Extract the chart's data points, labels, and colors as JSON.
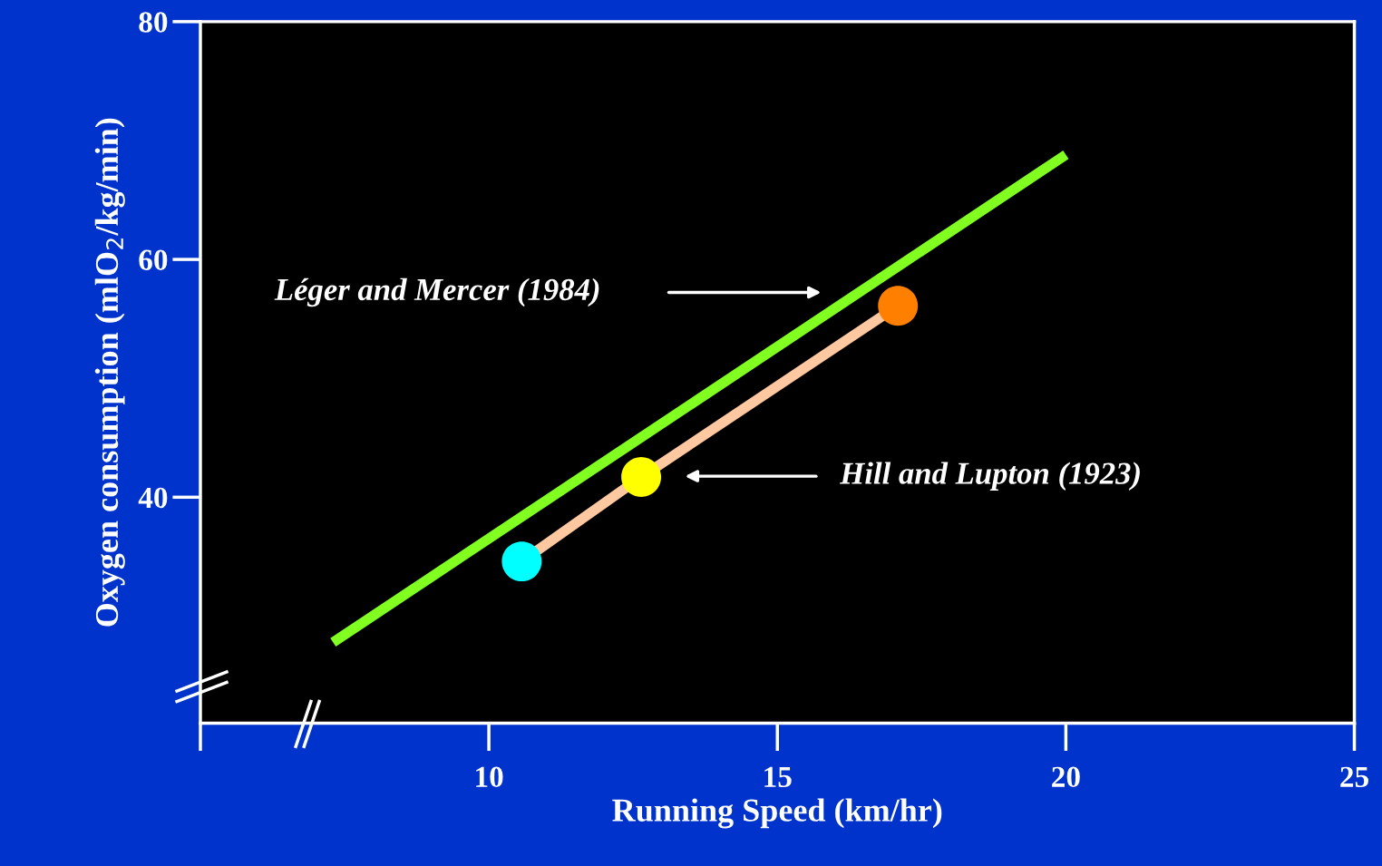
{
  "chart_data": {
    "type": "line",
    "xlabel": "Running Speed (km/hr)",
    "ylabel": "Oxygen consumption (mlO$_{2}$/kg/min)",
    "xlim": [
      5,
      25
    ],
    "xticks": [
      {
        "value": 5,
        "label": null
      },
      10,
      15,
      20,
      25
    ],
    "ylim": [
      21,
      80
    ],
    "yticks": [
      40,
      60,
      80
    ],
    "grid": false,
    "legend": false,
    "series": [
      {
        "color": "#80ff20",
        "x": [
          7.3,
          20.0
        ],
        "values": [
          27.8,
          68.8
        ],
        "marker": "none"
      },
      {
        "color": "#ffc8a0",
        "colors": [
          "#00ffff",
          "#ffff00",
          "#ff8000"
        ],
        "x": [
          10.57,
          12.64,
          17.09
        ],
        "values": [
          34.6,
          41.7,
          56.1
        ],
        "marker": "circle"
      }
    ],
    "annotations": [
      "Léger and Mercer (1984)",
      "Hill and Lupton (1923)"
    ]
  }
}
